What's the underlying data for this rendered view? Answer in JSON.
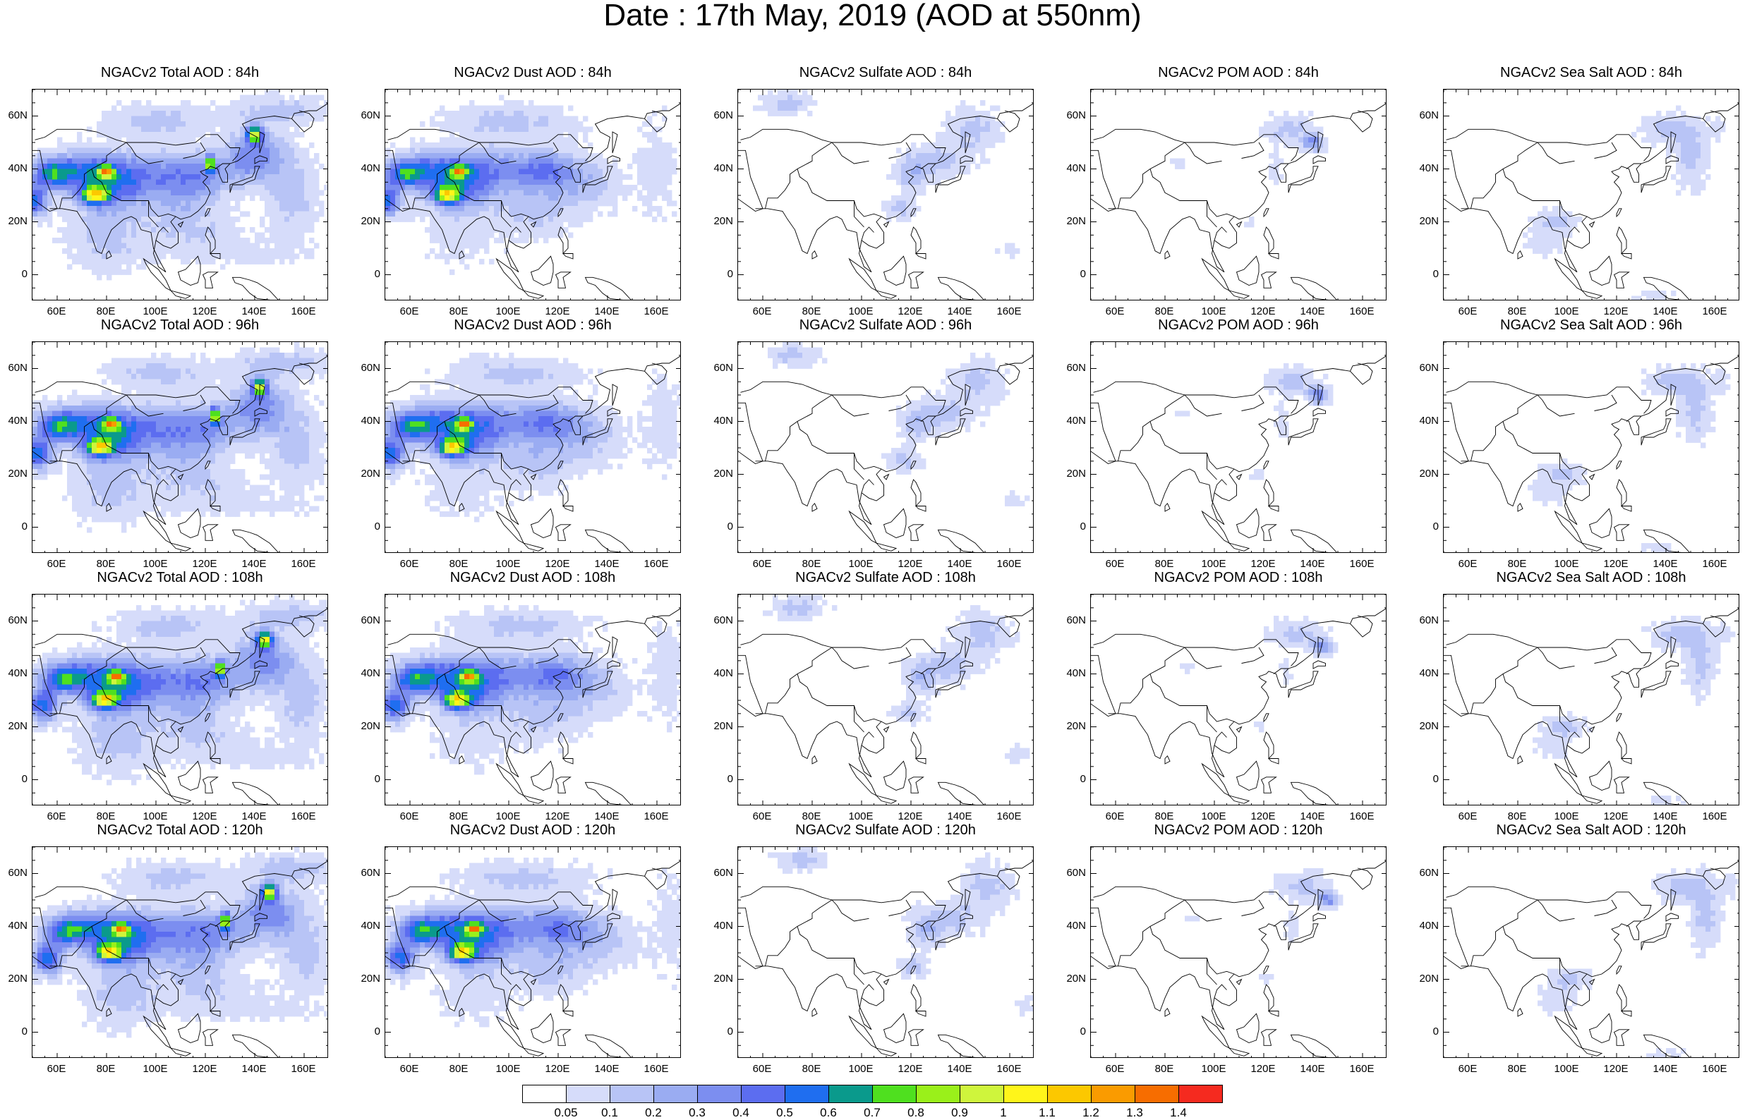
{
  "title": "Date : 17th May, 2019 (AOD at 550nm)",
  "lat_labels": [
    "60N",
    "40N",
    "20N",
    "0"
  ],
  "lon_labels": [
    "60E",
    "80E",
    "100E",
    "120E",
    "140E",
    "160E"
  ],
  "panels": [
    [
      {
        "title": "NGACv2 Total AOD : 84h",
        "species": "total",
        "hour": 84
      },
      {
        "title": "NGACv2 Dust AOD : 84h",
        "species": "dust",
        "hour": 84
      },
      {
        "title": "NGACv2 Sulfate AOD : 84h",
        "species": "sulfate",
        "hour": 84
      },
      {
        "title": "NGACv2 POM AOD : 84h",
        "species": "pom",
        "hour": 84
      },
      {
        "title": "NGACv2 Sea Salt AOD : 84h",
        "species": "seasalt",
        "hour": 84
      }
    ],
    [
      {
        "title": "NGACv2 Total AOD : 96h",
        "species": "total",
        "hour": 96
      },
      {
        "title": "NGACv2 Dust AOD : 96h",
        "species": "dust",
        "hour": 96
      },
      {
        "title": "NGACv2 Sulfate AOD : 96h",
        "species": "sulfate",
        "hour": 96
      },
      {
        "title": "NGACv2 POM AOD : 96h",
        "species": "pom",
        "hour": 96
      },
      {
        "title": "NGACv2 Sea Salt AOD : 96h",
        "species": "seasalt",
        "hour": 96
      }
    ],
    [
      {
        "title": "NGACv2 Total AOD : 108h",
        "species": "total",
        "hour": 108
      },
      {
        "title": "NGACv2 Dust AOD : 108h",
        "species": "dust",
        "hour": 108
      },
      {
        "title": "NGACv2 Sulfate AOD : 108h",
        "species": "sulfate",
        "hour": 108
      },
      {
        "title": "NGACv2 POM AOD : 108h",
        "species": "pom",
        "hour": 108
      },
      {
        "title": "NGACv2 Sea Salt AOD : 108h",
        "species": "seasalt",
        "hour": 108
      }
    ],
    [
      {
        "title": "NGACv2 Total AOD : 120h",
        "species": "total",
        "hour": 120
      },
      {
        "title": "NGACv2 Dust AOD : 120h",
        "species": "dust",
        "hour": 120
      },
      {
        "title": "NGACv2 Sulfate AOD : 120h",
        "species": "sulfate",
        "hour": 120
      },
      {
        "title": "NGACv2 POM AOD : 120h",
        "species": "pom",
        "hour": 120
      },
      {
        "title": "NGACv2 Sea Salt  AOD : 120h",
        "species": "seasalt",
        "hour": 120
      }
    ]
  ],
  "colorbar": {
    "labels": [
      "0.05",
      "0.1",
      "0.2",
      "0.3",
      "0.4",
      "0.5",
      "0.6",
      "0.7",
      "0.8",
      "0.9",
      "1",
      "1.1",
      "1.2",
      "1.3",
      "1.4"
    ],
    "colors": [
      "#ffffff",
      "#d6dcfa",
      "#b8c4f6",
      "#9aacf2",
      "#7c8ef0",
      "#5c6df0",
      "#1f6ef0",
      "#0a9a8c",
      "#4fe01f",
      "#9af01a",
      "#cff53c",
      "#fff51a",
      "#fcc800",
      "#fa9b00",
      "#f76d00",
      "#f52a1f"
    ]
  }
}
